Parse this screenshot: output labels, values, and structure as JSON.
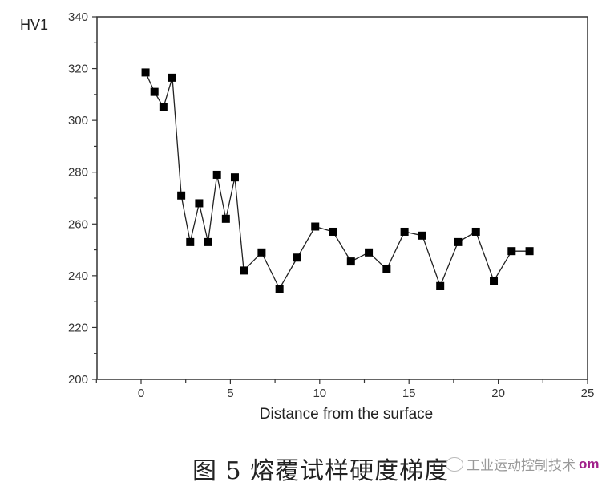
{
  "chart_data": {
    "type": "line",
    "title": "",
    "xlabel": "Distance from the surface",
    "ylabel": "HV1",
    "xlim": [
      -2.5,
      25
    ],
    "ylim": [
      200,
      340
    ],
    "xticks": [
      0,
      5,
      10,
      15,
      20,
      25
    ],
    "yticks": [
      200,
      220,
      240,
      260,
      280,
      300,
      320,
      340
    ],
    "grid": false,
    "legend": null,
    "marker": "square",
    "series": [
      {
        "name": "HV1",
        "x": [
          0.25,
          0.75,
          1.25,
          1.75,
          2.25,
          2.75,
          3.25,
          3.75,
          4.25,
          4.75,
          5.25,
          5.75,
          6.75,
          7.75,
          8.75,
          9.75,
          10.75,
          11.75,
          12.75,
          13.75,
          14.75,
          15.75,
          16.75,
          17.75,
          18.75,
          19.75,
          20.75,
          21.75
        ],
        "values": [
          318.5,
          311,
          305,
          316.5,
          271,
          253,
          268,
          253,
          279,
          262,
          278,
          242,
          249,
          235,
          247,
          259,
          257,
          245.5,
          249,
          242.5,
          257,
          255.5,
          236,
          253,
          257,
          238,
          249.5,
          249.5
        ]
      }
    ]
  },
  "caption": "图 5 熔覆试样硬度梯度",
  "watermark": {
    "text": "工业运动控制技术",
    "suffix": "om"
  }
}
